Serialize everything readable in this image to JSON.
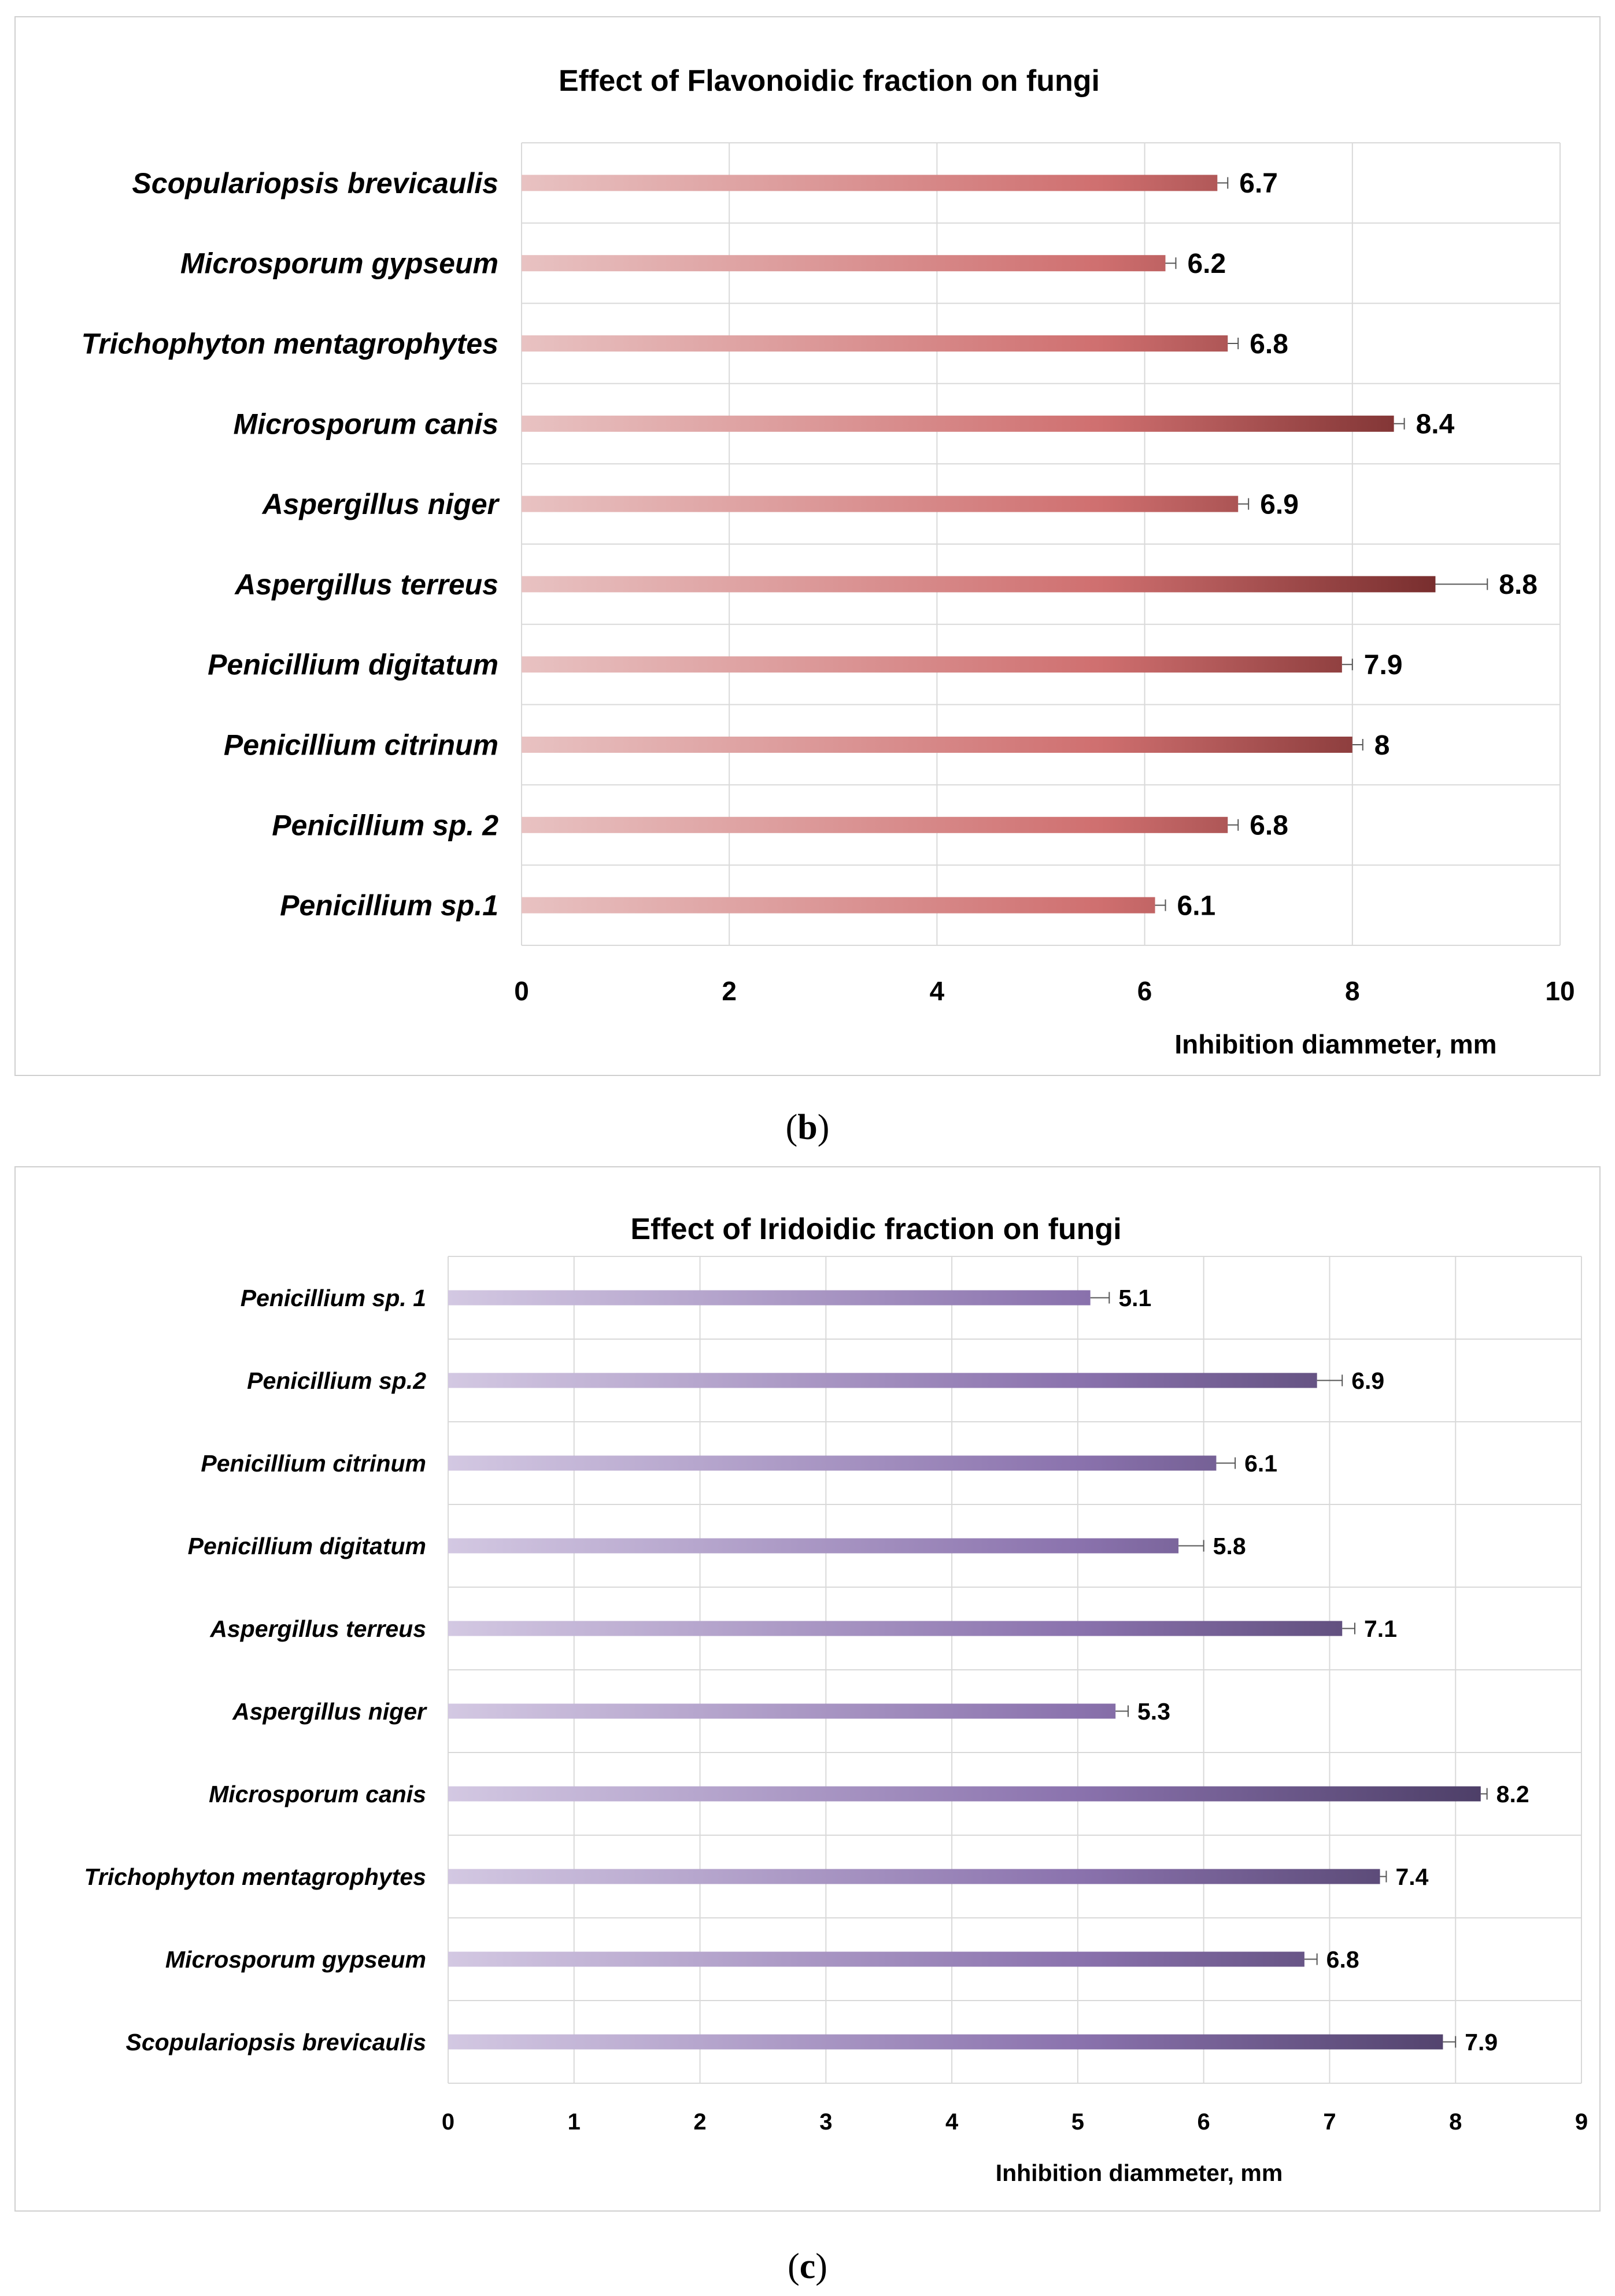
{
  "chart_data": [
    {
      "type": "bar",
      "orientation": "horizontal",
      "title": "Effect of Flavonoidic fraction on fungi",
      "xlabel": "Inhibition diammeter, mm",
      "ylabel": "",
      "xlim": [
        0,
        10
      ],
      "xticks": [
        "0",
        "2",
        "4",
        "6",
        "8",
        "10"
      ],
      "grid": true,
      "caption_letter": "b",
      "categories": [
        "Scopulariopsis brevicaulis",
        "Microsporum gypseum",
        "Trichophyton mentagrophytes",
        "Microsporum canis",
        "Aspergillus niger",
        "Aspergillus terreus",
        "Penicillium digitatum",
        "Penicillium citrinum",
        "Penicillium sp. 2",
        "Penicillium sp.1"
      ],
      "values": [
        6.7,
        6.2,
        6.8,
        8.4,
        6.9,
        8.8,
        7.9,
        8,
        6.8,
        6.1
      ],
      "value_labels": [
        "6.7",
        "6.2",
        "6.8",
        "8.4",
        "6.9",
        "8.8",
        "7.9",
        "8",
        "6.8",
        "6.1"
      ],
      "errors": [
        0.1,
        0.1,
        0.1,
        0.1,
        0.1,
        0.5,
        0.1,
        0.1,
        0.1,
        0.1
      ],
      "colors": {
        "bar_start": "#e8c2c2",
        "bar_mid": "#cf6f6f",
        "bar_end": "#6b2424"
      }
    },
    {
      "type": "bar",
      "orientation": "horizontal",
      "title": "Effect of Iridoidic  fraction on fungi",
      "xlabel": "Inhibition diammeter, mm",
      "ylabel": "",
      "xlim": [
        0,
        9
      ],
      "xticks": [
        "0",
        "1",
        "2",
        "3",
        "4",
        "5",
        "6",
        "7",
        "8",
        "9"
      ],
      "grid": true,
      "caption_letter": "c",
      "categories": [
        "Penicillium sp. 1",
        "Penicillium sp.2",
        "Penicillium citrinum",
        "Penicillium digitatum",
        "Aspergillus terreus",
        "Aspergillus niger",
        "Microsporum canis",
        "Trichophyton mentagrophytes",
        "Microsporum gypseum",
        "Scopulariopsis brevicaulis"
      ],
      "values": [
        5.1,
        6.9,
        6.1,
        5.8,
        7.1,
        5.3,
        8.2,
        7.4,
        6.8,
        7.9
      ],
      "value_labels": [
        "5.1",
        "6.9",
        "6.1",
        "5.8",
        "7.1",
        "5.3",
        "8.2",
        "7.4",
        "6.8",
        "7.9"
      ],
      "errors": [
        0.15,
        0.2,
        0.15,
        0.2,
        0.1,
        0.1,
        0.05,
        0.05,
        0.1,
        0.1
      ],
      "colors": {
        "bar_start": "#d3c8e2",
        "bar_mid": "#8a72ad",
        "bar_end": "#4a3c64"
      }
    }
  ]
}
